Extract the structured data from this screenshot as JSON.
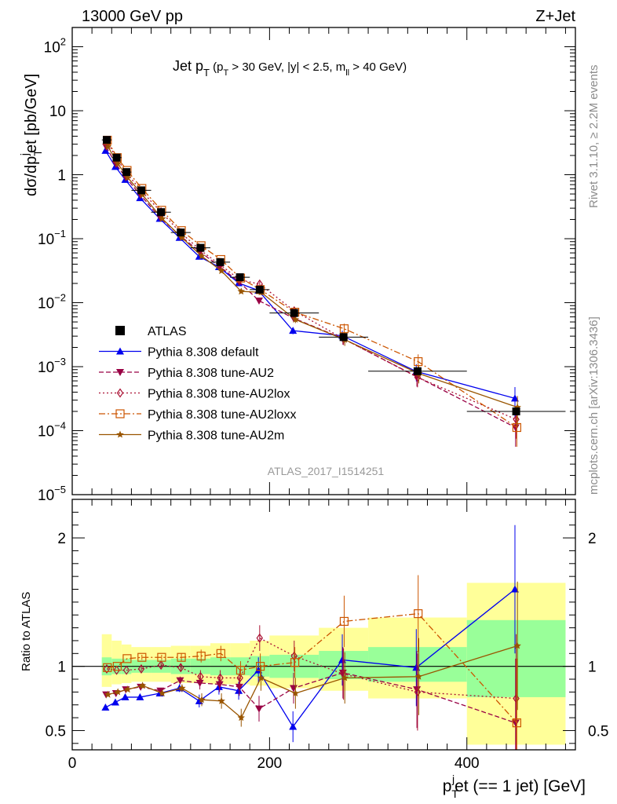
{
  "header": {
    "left": "13000 GeV pp",
    "right": "Z+Jet"
  },
  "side_labels": {
    "rivet": "Rivet 3.1.10, ≥ 2.2M events",
    "mcplots": "mcplots.cern.ch [arXiv:1306.3436]"
  },
  "watermark": "ATLAS_2017_I1514251",
  "plot_title": {
    "main": "Jet p",
    "main_sub": "T",
    "cut_open": " (p",
    "cut_sub": "T",
    "cut_rest": " > 30 GeV, |y| < 2.5, m",
    "cut_sub2": "ll",
    "cut_close": " > 40 GeV)"
  },
  "ylabel_top": {
    "a": "dσ/dp",
    "sub": "T",
    "sup": "j",
    "b": "et [pb/GeV]"
  },
  "ylabel_bottom": "Ratio to ATLAS",
  "xlabel": {
    "a": "p",
    "sub": "T",
    "sup": "j",
    "b": "et (== 1 jet) [GeV]"
  },
  "chart_data": {
    "type": "line",
    "x_ticks": [
      "0",
      "200",
      "400"
    ],
    "xlim": [
      0,
      510
    ],
    "top_yscale": "log",
    "top_ylim": [
      1e-05,
      200
    ],
    "top_yticks": [
      "10^-5",
      "10^-4",
      "10^-3",
      "10^-2",
      "10^-1",
      "1",
      "10",
      "10^2"
    ],
    "bottom_ylim": [
      0.35,
      2.3
    ],
    "bottom_yticks": [
      "0.5",
      "1",
      "2"
    ],
    "bins": [
      [
        30,
        40
      ],
      [
        40,
        50
      ],
      [
        50,
        60
      ],
      [
        60,
        80
      ],
      [
        80,
        100
      ],
      [
        100,
        120
      ],
      [
        120,
        140
      ],
      [
        140,
        160
      ],
      [
        160,
        180
      ],
      [
        180,
        200
      ],
      [
        200,
        250
      ],
      [
        250,
        300
      ],
      [
        300,
        400
      ],
      [
        400,
        500
      ]
    ],
    "x": [
      35,
      45,
      55,
      70,
      90,
      110,
      130,
      150,
      170,
      190,
      225,
      275,
      350,
      450
    ],
    "atlas": [
      3.5,
      1.85,
      1.1,
      0.57,
      0.26,
      0.125,
      0.072,
      0.043,
      0.025,
      0.016,
      0.0069,
      0.0029,
      0.00085,
      0.0002
    ],
    "ratio_band_stat": [
      [
        0.93,
        1.07
      ],
      [
        0.94,
        1.06
      ],
      [
        0.94,
        1.06
      ],
      [
        0.95,
        1.05
      ],
      [
        0.95,
        1.05
      ],
      [
        0.94,
        1.06
      ],
      [
        0.94,
        1.06
      ],
      [
        0.93,
        1.07
      ],
      [
        0.93,
        1.07
      ],
      [
        0.92,
        1.08
      ],
      [
        0.91,
        1.09
      ],
      [
        0.9,
        1.12
      ],
      [
        0.88,
        1.15
      ],
      [
        0.76,
        1.36
      ]
    ],
    "ratio_band_tot": [
      [
        0.84,
        1.25
      ],
      [
        0.86,
        1.2
      ],
      [
        0.87,
        1.17
      ],
      [
        0.88,
        1.15
      ],
      [
        0.88,
        1.15
      ],
      [
        0.87,
        1.16
      ],
      [
        0.87,
        1.16
      ],
      [
        0.86,
        1.18
      ],
      [
        0.86,
        1.18
      ],
      [
        0.85,
        1.2
      ],
      [
        0.83,
        1.24
      ],
      [
        0.81,
        1.3
      ],
      [
        0.75,
        1.38
      ],
      [
        0.39,
        1.65
      ]
    ],
    "legend": [
      "ATLAS",
      "Pythia 8.308 default",
      "Pythia 8.308 tune-AU2",
      "Pythia 8.308 tune-AU2lox",
      "Pythia 8.308 tune-AU2loxx",
      "Pythia 8.308 tune-AU2m"
    ],
    "series": [
      {
        "name": "Pythia 8.308 default",
        "color": "#0000ee",
        "dash": "",
        "marker": "triangle-up",
        "ratio": [
          0.68,
          0.72,
          0.76,
          0.76,
          0.79,
          0.83,
          0.73,
          0.84,
          0.81,
          0.97,
          0.53,
          1.05,
          0.99,
          1.6
        ],
        "err": [
          0.01,
          0.01,
          0.01,
          0.02,
          0.02,
          0.03,
          0.05,
          0.06,
          0.07,
          0.1,
          0.12,
          0.2,
          0.3,
          0.5
        ]
      },
      {
        "name": "Pythia 8.308 tune-AU2",
        "color": "#990044",
        "dash": "6,3",
        "marker": "triangle-down",
        "ratio": [
          0.78,
          0.79,
          0.82,
          0.84,
          0.81,
          0.89,
          0.87,
          0.86,
          0.84,
          0.67,
          0.83,
          0.95,
          0.82,
          0.56
        ],
        "err": [
          0.01,
          0.01,
          0.01,
          0.02,
          0.02,
          0.03,
          0.05,
          0.06,
          0.07,
          0.1,
          0.12,
          0.2,
          0.3,
          0.5
        ]
      },
      {
        "name": "Pythia 8.308 tune-AU2lox",
        "color": "#aa1133",
        "dash": "2,3",
        "marker": "diamond",
        "ratio": [
          0.98,
          0.97,
          0.97,
          0.98,
          1.01,
          0.99,
          0.92,
          0.91,
          0.91,
          1.22,
          1.08,
          0.94,
          0.8,
          0.75
        ],
        "err": [
          0.01,
          0.01,
          0.01,
          0.02,
          0.02,
          0.03,
          0.05,
          0.06,
          0.07,
          0.1,
          0.12,
          0.2,
          0.3,
          0.5
        ]
      },
      {
        "name": "Pythia 8.308 tune-AU2loxx",
        "color": "#cc5500",
        "dash": "8,3,2,3",
        "marker": "square-open",
        "ratio": [
          0.99,
          1.0,
          1.06,
          1.07,
          1.07,
          1.07,
          1.08,
          1.1,
          0.97,
          1.0,
          1.03,
          1.35,
          1.41,
          0.56
        ],
        "err": [
          0.01,
          0.01,
          0.01,
          0.02,
          0.02,
          0.03,
          0.05,
          0.06,
          0.07,
          0.1,
          0.12,
          0.2,
          0.3,
          0.5
        ]
      },
      {
        "name": "Pythia 8.308 tune-AU2m",
        "color": "#995500",
        "dash": "",
        "marker": "star",
        "ratio": [
          0.78,
          0.8,
          0.82,
          0.85,
          0.79,
          0.83,
          0.74,
          0.73,
          0.6,
          0.91,
          0.79,
          0.91,
          0.92,
          1.16
        ],
        "err": [
          0.01,
          0.01,
          0.01,
          0.02,
          0.02,
          0.03,
          0.05,
          0.06,
          0.07,
          0.1,
          0.12,
          0.2,
          0.3,
          0.5
        ]
      }
    ]
  }
}
